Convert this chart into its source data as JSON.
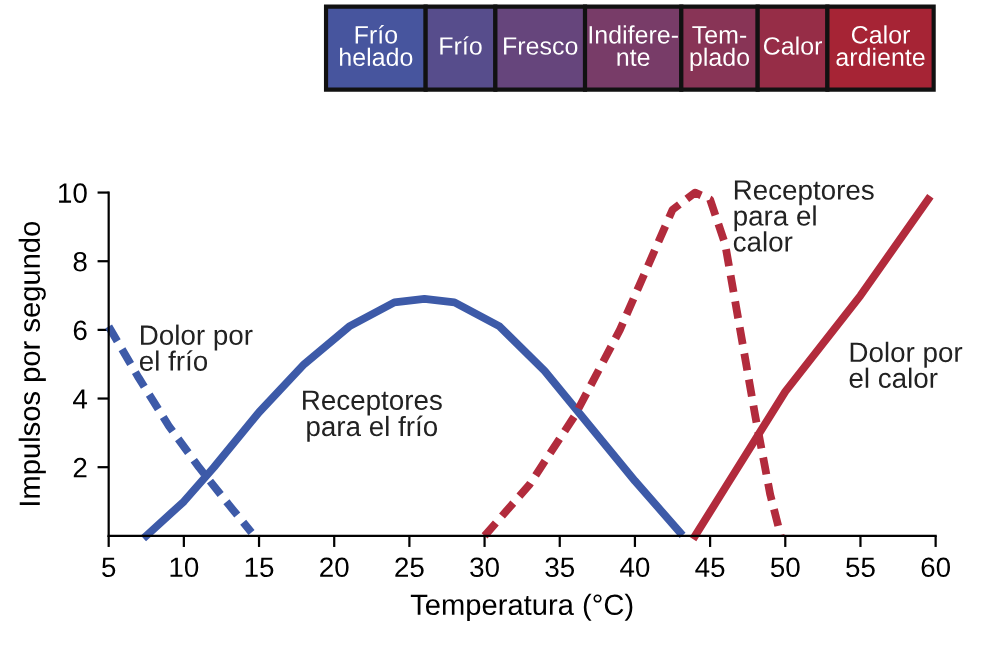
{
  "chart_data": {
    "type": "line",
    "xlabel": "Temperatura (°C)",
    "ylabel": "Impulsos por segundo",
    "xlim": [
      5,
      60
    ],
    "xticks": [
      5,
      10,
      15,
      20,
      25,
      30,
      35,
      40,
      45,
      50,
      55,
      60
    ],
    "ylim": [
      0,
      10
    ],
    "yticks": [
      2,
      4,
      6,
      8,
      10
    ],
    "grid": false,
    "legend": false,
    "marker": "none",
    "annotations": [
      "Frío\nhelado",
      "Frío",
      "Fresco",
      "Indifere-\nnte",
      "Tem-\nplado",
      "Calor",
      "Calor\nardiente"
    ],
    "series": [
      {
        "name": "Dolor por\nel frío",
        "color": "#3d5aa8",
        "line_style": "dashed",
        "x": [
          5,
          7,
          9,
          11,
          13,
          14.5
        ],
        "values": [
          6.1,
          4.6,
          3.2,
          2.0,
          0.9,
          0.1
        ]
      },
      {
        "name": "Receptores\npara el frío",
        "color": "#3d5aa8",
        "line_style": "solid",
        "x": [
          7.5,
          10,
          12,
          15,
          18,
          21,
          24,
          26,
          28,
          31,
          34,
          37,
          40,
          43
        ],
        "values": [
          0,
          1.0,
          2.0,
          3.6,
          5.0,
          6.1,
          6.8,
          6.9,
          6.8,
          6.1,
          4.8,
          3.2,
          1.6,
          0.1
        ]
      },
      {
        "name": "Receptores\npara el\ncalor",
        "color": "#b22b3c",
        "line_style": "dashed",
        "x": [
          30,
          33,
          36,
          39,
          41,
          42.5,
          44,
          45,
          46,
          47,
          48,
          49,
          49.7
        ],
        "values": [
          0,
          1.5,
          3.5,
          6.0,
          8.0,
          9.5,
          10,
          9.8,
          8.5,
          6.0,
          3.5,
          1.2,
          0
        ]
      },
      {
        "name": "Dolor por\nel calor",
        "color": "#b22b3c",
        "line_style": "solid",
        "x": [
          44,
          46,
          50,
          55,
          59.5
        ],
        "values": [
          0,
          1.4,
          4.2,
          7.0,
          9.8
        ]
      }
    ]
  }
}
